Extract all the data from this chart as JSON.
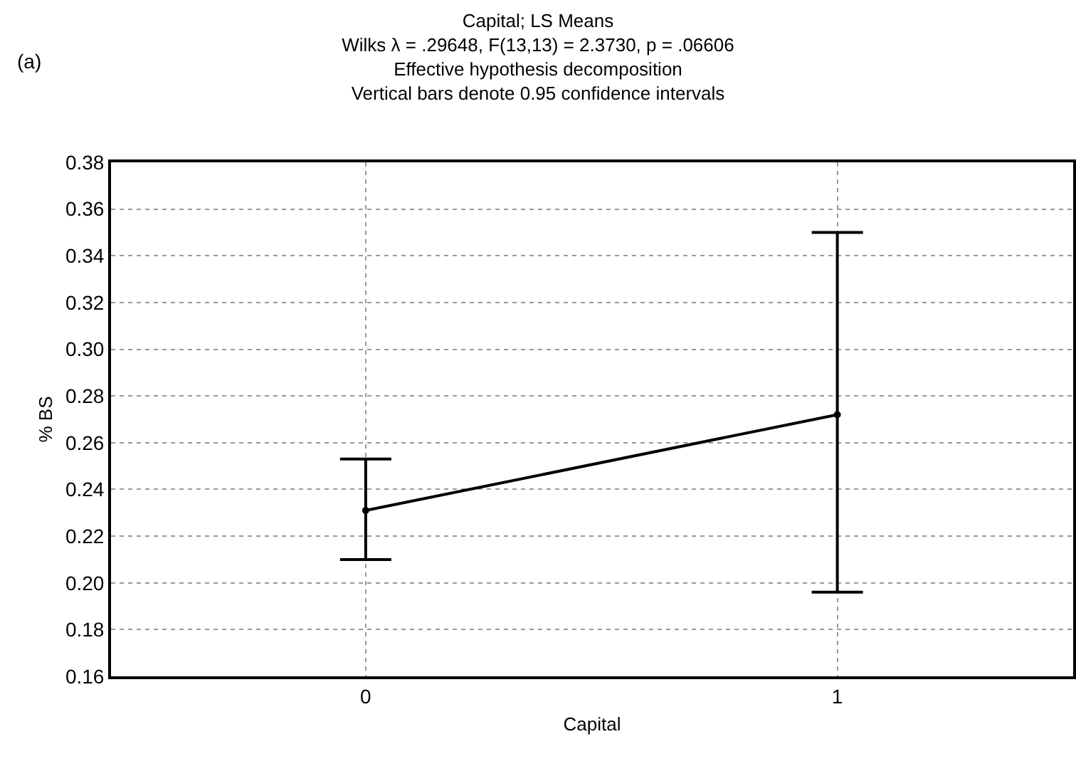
{
  "chart_data": {
    "type": "line",
    "title": "Capital; LS Means\nWilks λ = .29648, F(13,13) = 2.3730, p = .06606\nEffective hypothesis decomposition\nVertical bars denote 0.95 confidence intervals",
    "xlabel": "Capital",
    "ylabel": "% BS",
    "annotations": [
      "(a)"
    ],
    "categories": [
      "0",
      "1"
    ],
    "series": [
      {
        "color": "#000000",
        "values": [
          0.231,
          0.272
        ],
        "errors": [
          [
            0.21,
            0.253
          ],
          [
            0.196,
            0.35
          ]
        ]
      }
    ],
    "ylim": [
      0.16,
      0.38
    ],
    "yticks": [
      {
        "value": 0.16,
        "label": "0.16"
      },
      {
        "value": 0.18,
        "label": "0.18"
      },
      {
        "value": 0.2,
        "label": "0.20"
      },
      {
        "value": 0.22,
        "label": "0.22"
      },
      {
        "value": 0.24,
        "label": "0.24"
      },
      {
        "value": 0.26,
        "label": "0.26"
      },
      {
        "value": 0.28,
        "label": "0.28"
      },
      {
        "value": 0.3,
        "label": "0.30"
      },
      {
        "value": 0.32,
        "label": "0.32"
      },
      {
        "value": 0.34,
        "label": "0.34"
      },
      {
        "value": 0.36,
        "label": "0.36"
      },
      {
        "value": 0.38,
        "label": "0.38"
      }
    ],
    "grid": true,
    "marker": "circle",
    "line_style": "solid"
  }
}
